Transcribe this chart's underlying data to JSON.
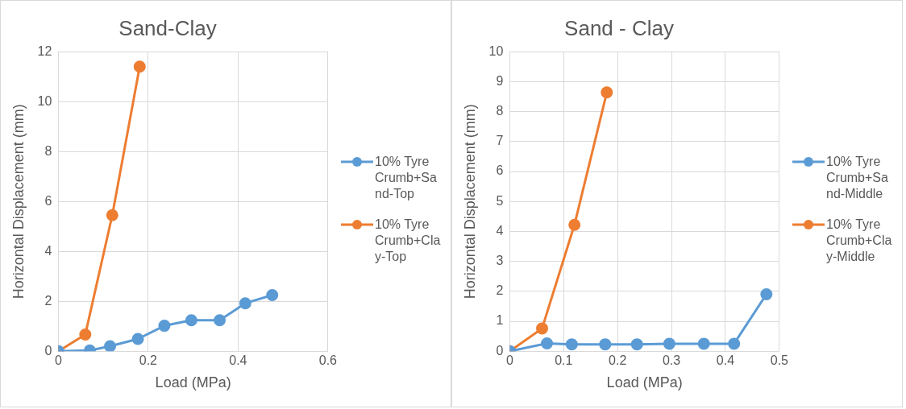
{
  "chart_data": [
    {
      "type": "line",
      "title": "Sand-Clay",
      "xlabel": "Load (MPa)",
      "ylabel": "Horizontal Displacement (mm)",
      "xlim": [
        0,
        0.6
      ],
      "xticks": [
        0,
        0.2,
        0.4,
        0.6
      ],
      "ylim": [
        0,
        12
      ],
      "yticks": [
        0,
        2,
        4,
        6,
        8,
        10,
        12
      ],
      "grid": true,
      "legend": "right",
      "marker": "circle",
      "line_style": "solid",
      "series": [
        {
          "name": "10% Tyre Crumb+Sand-Top",
          "color": "#5b9bd5",
          "x": [
            0,
            0.07,
            0.115,
            0.177,
            0.236,
            0.296,
            0.359,
            0.416,
            0.476
          ],
          "values": [
            0,
            0.03,
            0.2,
            0.49,
            1.02,
            1.24,
            1.24,
            1.92,
            2.25
          ]
        },
        {
          "name": "10% Tyre Crumb+Clay-Top",
          "color": "#ed7d31",
          "x": [
            0,
            0.06,
            0.12,
            0.181
          ],
          "values": [
            0,
            0.67,
            5.45,
            11.4
          ]
        }
      ]
    },
    {
      "type": "line",
      "title": "Sand - Clay",
      "xlabel": "Load (MPa)",
      "ylabel": "Horizontal Displacement (mm)",
      "xlim": [
        0,
        0.5
      ],
      "xticks": [
        0,
        0.1,
        0.2,
        0.3,
        0.4,
        0.5
      ],
      "ylim": [
        0,
        10
      ],
      "yticks": [
        0,
        1,
        2,
        3,
        4,
        5,
        6,
        7,
        8,
        9,
        10
      ],
      "grid": true,
      "legend": "right",
      "marker": "circle",
      "line_style": "solid",
      "series": [
        {
          "name": "10% Tyre Crumb+Sand-Middle",
          "color": "#5b9bd5",
          "x": [
            0,
            0.069,
            0.115,
            0.177,
            0.236,
            0.296,
            0.36,
            0.416,
            0.476
          ],
          "values": [
            0,
            0.26,
            0.23,
            0.23,
            0.23,
            0.25,
            0.25,
            0.25,
            1.9
          ]
        },
        {
          "name": "10% Tyre Crumb+Clay-Middle",
          "color": "#ed7d31",
          "x": [
            0,
            0.06,
            0.12,
            0.18
          ],
          "values": [
            0,
            0.76,
            4.22,
            8.64
          ]
        }
      ]
    }
  ]
}
